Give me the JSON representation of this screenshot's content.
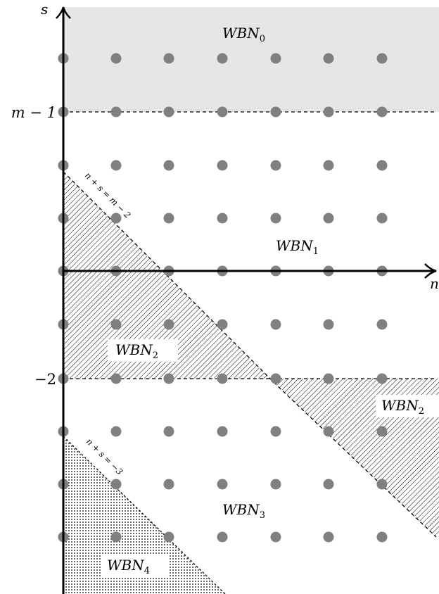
{
  "axes": {
    "horizontal_label": "n",
    "vertical_label": "s"
  },
  "tick_labels": {
    "m_minus_1": "m − 1",
    "minus_2": "−2"
  },
  "regions": {
    "wbn0": {
      "base": "WBN",
      "sub": "0"
    },
    "wbn1": {
      "base": "WBN",
      "sub": "1"
    },
    "wbn2_left": {
      "base": "WBN",
      "sub": "2"
    },
    "wbn2_right": {
      "base": "WBN",
      "sub": "2"
    },
    "wbn3": {
      "base": "WBN",
      "sub": "3"
    },
    "wbn4": {
      "base": "WBN",
      "sub": "4"
    }
  },
  "line_labels": {
    "upper": "n + s = m − 2",
    "lower": "n + s = −3"
  },
  "colors": {
    "shaded_region": "#e6e6e6",
    "dot": "#808080",
    "ink": "#000000"
  }
}
